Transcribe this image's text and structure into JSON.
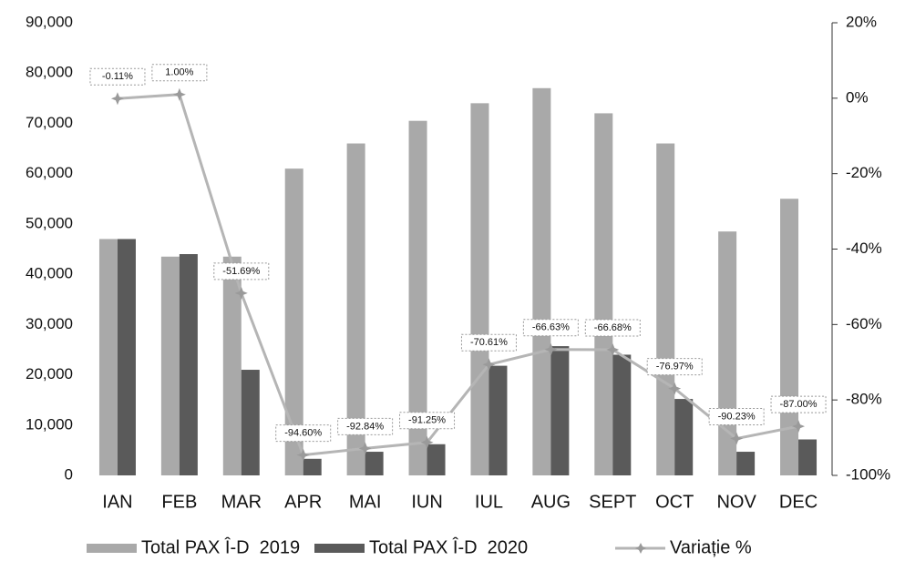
{
  "chart_data": {
    "type": "bar",
    "categories": [
      "IAN",
      "FEB",
      "MAR",
      "APR",
      "MAI",
      "IUN",
      "IUL",
      "AUG",
      "SEPT",
      "OCT",
      "NOV",
      "DEC"
    ],
    "series": [
      {
        "name": "Total PAX Î-D  2019",
        "type": "bar",
        "axis": "y",
        "color": "#a9a9a9",
        "values": [
          47000,
          43500,
          43500,
          61000,
          66000,
          70500,
          74000,
          77000,
          72000,
          66000,
          48500,
          55000
        ]
      },
      {
        "name": "Total PAX Î-D  2020",
        "type": "bar",
        "axis": "y",
        "color": "#5a5a5a",
        "values": [
          47000,
          44000,
          21000,
          3300,
          4700,
          6200,
          21800,
          25700,
          24000,
          15200,
          4700,
          7150
        ]
      },
      {
        "name": "Variație %",
        "type": "line",
        "axis": "y2",
        "color": "#b5b5b5",
        "values": [
          -0.11,
          1.0,
          -51.69,
          -94.6,
          -92.84,
          -91.25,
          -70.61,
          -66.63,
          -66.68,
          -76.97,
          -90.23,
          -87.0
        ],
        "value_labels": [
          "-0.11%",
          "1.00%",
          "-51.69%",
          "-94.60%",
          "-92.84%",
          "-91.25%",
          "-70.61%",
          "-66.63%",
          "-66.68%",
          "-76.97%",
          "-90.23%",
          "-87.00%"
        ]
      }
    ],
    "ylim": [
      0,
      90000
    ],
    "yticks": [
      {
        "value": 0,
        "label": "0"
      },
      {
        "value": 10000,
        "label": "10,000"
      },
      {
        "value": 20000,
        "label": "20,000"
      },
      {
        "value": 30000,
        "label": "30,000"
      },
      {
        "value": 40000,
        "label": "40,000"
      },
      {
        "value": 50000,
        "label": "50,000"
      },
      {
        "value": 60000,
        "label": "60,000"
      },
      {
        "value": 70000,
        "label": "70,000"
      },
      {
        "value": 80000,
        "label": "80,000"
      },
      {
        "value": 90000,
        "label": "90,000"
      }
    ],
    "y2lim": [
      -100,
      20
    ],
    "y2ticks": [
      {
        "value": -100,
        "label": "-100%"
      },
      {
        "value": -80,
        "label": "-80%"
      },
      {
        "value": -60,
        "label": "-60%"
      },
      {
        "value": -40,
        "label": "-40%"
      },
      {
        "value": -20,
        "label": "-20%"
      },
      {
        "value": 0,
        "label": "0%"
      },
      {
        "value": 20,
        "label": "20%"
      }
    ],
    "legend": "bottom"
  }
}
